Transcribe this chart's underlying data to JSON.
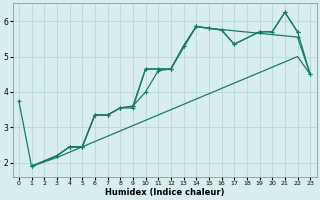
{
  "xlabel": "Humidex (Indice chaleur)",
  "bg_color": "#d8eeee",
  "grid_color": "#b8d8d8",
  "line_color": "#1a7a6a",
  "xlim": [
    -0.5,
    23.5
  ],
  "ylim": [
    1.6,
    6.5
  ],
  "yticks": [
    2,
    3,
    4,
    5,
    6
  ],
  "xticks": [
    0,
    1,
    2,
    3,
    4,
    5,
    6,
    7,
    8,
    9,
    10,
    11,
    12,
    13,
    14,
    15,
    16,
    17,
    18,
    19,
    20,
    21,
    22,
    23
  ],
  "series1_x": [
    0,
    1,
    3,
    4,
    5,
    6,
    7,
    8,
    9,
    10,
    11,
    12,
    13,
    14,
    15,
    16,
    17,
    19,
    20,
    21,
    22
  ],
  "series1_y": [
    3.75,
    1.9,
    2.2,
    2.45,
    2.45,
    3.35,
    3.35,
    3.55,
    3.6,
    4.65,
    4.65,
    4.65,
    5.3,
    5.85,
    5.8,
    5.75,
    5.35,
    5.7,
    5.7,
    6.25,
    5.7
  ],
  "series2_x": [
    1,
    3,
    4,
    5,
    6,
    7,
    8,
    9,
    10,
    11,
    12,
    14,
    15,
    22,
    23
  ],
  "series2_y": [
    1.9,
    2.2,
    2.45,
    2.45,
    3.35,
    3.35,
    3.55,
    3.55,
    4.65,
    4.65,
    4.65,
    5.85,
    5.8,
    5.55,
    4.5
  ],
  "series3_x": [
    1,
    3,
    4,
    5,
    6,
    7,
    8,
    9,
    10,
    11,
    12,
    13,
    14,
    15,
    16,
    17,
    18,
    19,
    20,
    21,
    22,
    23
  ],
  "series3_y": [
    1.9,
    2.15,
    2.3,
    2.45,
    2.6,
    2.75,
    2.9,
    3.05,
    3.2,
    3.35,
    3.5,
    3.65,
    3.8,
    3.95,
    4.1,
    4.25,
    4.4,
    4.55,
    4.7,
    4.85,
    5.0,
    4.5
  ],
  "series4_x": [
    1,
    3,
    4,
    5,
    6,
    7,
    8,
    9,
    10,
    11,
    12,
    13,
    14,
    15,
    16,
    17,
    19,
    20,
    21,
    22,
    23
  ],
  "series4_y": [
    1.9,
    2.2,
    2.45,
    2.45,
    3.35,
    3.35,
    3.55,
    3.6,
    4.0,
    4.6,
    4.65,
    5.3,
    5.85,
    5.8,
    5.75,
    5.35,
    5.7,
    5.7,
    6.25,
    5.7,
    4.5
  ]
}
